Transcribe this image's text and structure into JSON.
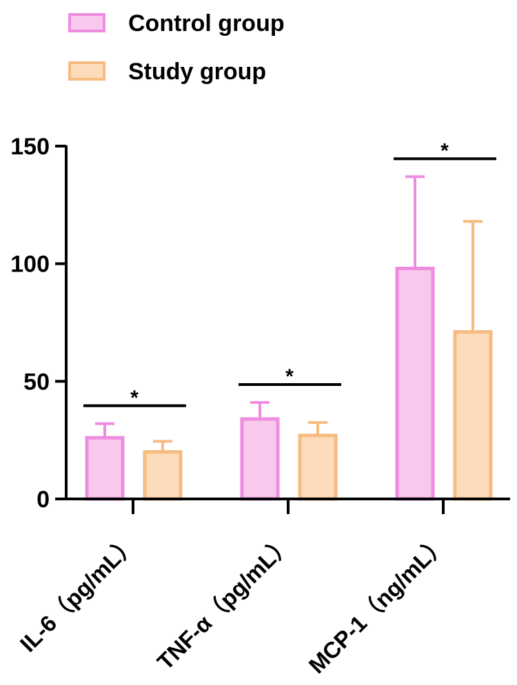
{
  "chart_data": {
    "type": "bar",
    "categories": [
      "IL-6（pg/mL）",
      "TNF-α（pg/mL）",
      "MCP-1（ng/mL）"
    ],
    "series": [
      {
        "name": "Control group",
        "values": [
          26,
          34,
          98
        ],
        "error": [
          6,
          7,
          39
        ],
        "fill": "#f8c9ec",
        "stroke": "#ee8de0"
      },
      {
        "name": "Study group",
        "values": [
          20,
          27,
          71
        ],
        "error": [
          4.5,
          5.5,
          47
        ],
        "fill": "#fddcbc",
        "stroke": "#f6bb80"
      }
    ],
    "significance": [
      "*",
      "*",
      "*"
    ],
    "ylim": [
      0,
      150
    ],
    "yticks": [
      "0",
      "50",
      "100",
      "150"
    ],
    "legend_position": "top-left",
    "grid": false
  }
}
